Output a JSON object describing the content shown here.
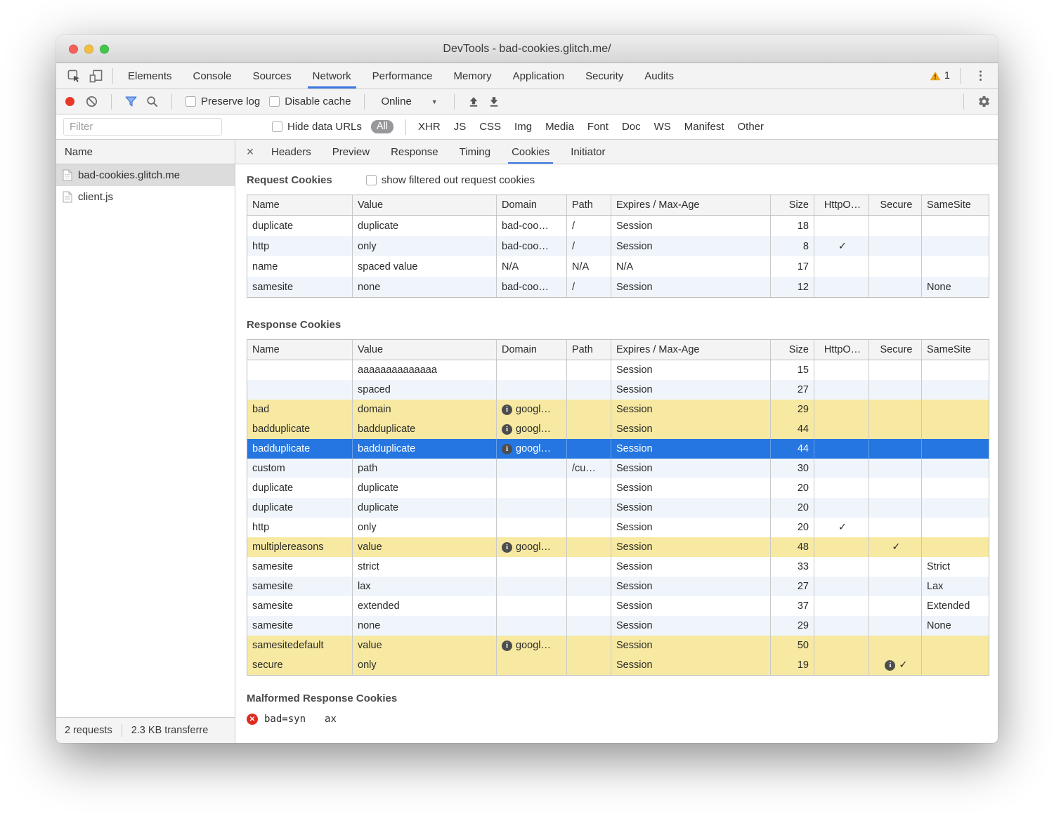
{
  "colors": {
    "accent_blue": "#3b78e0",
    "selection_blue": "#2576e0",
    "row_stripe": "#f0f5fc",
    "row_warning": "#f7e9a1",
    "selected_file_gray": "#dcdcdc",
    "warning_orange": "#efa41b",
    "error_red": "#df2b20",
    "record_red": "#e8382b"
  },
  "window": {
    "title": "DevTools - bad-cookies.glitch.me/"
  },
  "icons": {
    "dropdown_arrow": "▼",
    "menu_dots": "⋮",
    "close_detail": "×"
  },
  "main_tabs": {
    "items": [
      {
        "label": "Elements",
        "active": false
      },
      {
        "label": "Console",
        "active": false
      },
      {
        "label": "Sources",
        "active": false
      },
      {
        "label": "Network",
        "active": true
      },
      {
        "label": "Performance",
        "active": false
      },
      {
        "label": "Memory",
        "active": false
      },
      {
        "label": "Application",
        "active": false
      },
      {
        "label": "Security",
        "active": false
      },
      {
        "label": "Audits",
        "active": false
      }
    ],
    "warning_count": "1"
  },
  "toolbar": {
    "preserve_log": "Preserve log",
    "disable_cache": "Disable cache",
    "throttling": "Online"
  },
  "filter_bar": {
    "placeholder": "Filter",
    "hide_data_urls": "Hide data URLs",
    "all_label": "All",
    "types": [
      "XHR",
      "JS",
      "CSS",
      "Img",
      "Media",
      "Font",
      "Doc",
      "WS",
      "Manifest",
      "Other"
    ]
  },
  "left_panel": {
    "header": "Name",
    "files": [
      {
        "name": "bad-cookies.glitch.me",
        "selected": true
      },
      {
        "name": "client.js",
        "selected": false
      }
    ],
    "status": [
      "2 requests",
      "2.3 KB transferre"
    ]
  },
  "detail_tabs": {
    "items": [
      {
        "label": "Headers",
        "active": false
      },
      {
        "label": "Preview",
        "active": false
      },
      {
        "label": "Response",
        "active": false
      },
      {
        "label": "Timing",
        "active": false
      },
      {
        "label": "Cookies",
        "active": true
      },
      {
        "label": "Initiator",
        "active": false
      }
    ]
  },
  "cookies": {
    "request_title": "Request Cookies",
    "request_checkbox_label": "show filtered out request cookies",
    "response_title": "Response Cookies",
    "malformed_title": "Malformed Response Cookies",
    "malformed_entry": {
      "text": "bad=syn",
      "text_after_tab": "ax"
    },
    "columns": [
      "Name",
      "Value",
      "Domain",
      "Path",
      "Expires / Max-Age",
      "Size",
      "HttpO…",
      "Secure",
      "SameSite"
    ],
    "request_rows": [
      {
        "name": "duplicate",
        "value": "duplicate",
        "domain": "bad-coo…",
        "domain_info": false,
        "path": "/",
        "expires": "Session",
        "size": "18",
        "httponly": "",
        "secure": "",
        "secure_info": false,
        "samesite": "",
        "highlight": ""
      },
      {
        "name": "http",
        "value": "only",
        "domain": "bad-coo…",
        "domain_info": false,
        "path": "/",
        "expires": "Session",
        "size": "8",
        "httponly": "✓",
        "secure": "",
        "secure_info": false,
        "samesite": "",
        "highlight": ""
      },
      {
        "name": "name",
        "value": "spaced value",
        "domain": "N/A",
        "domain_info": false,
        "path": "N/A",
        "expires": "N/A",
        "size": "17",
        "httponly": "",
        "secure": "",
        "secure_info": false,
        "samesite": "",
        "highlight": ""
      },
      {
        "name": "samesite",
        "value": "none",
        "domain": "bad-coo…",
        "domain_info": false,
        "path": "/",
        "expires": "Session",
        "size": "12",
        "httponly": "",
        "secure": "",
        "secure_info": false,
        "samesite": "None",
        "highlight": ""
      }
    ],
    "response_rows": [
      {
        "name": "",
        "value": "aaaaaaaaaaaaaa",
        "domain": "",
        "domain_info": false,
        "path": "",
        "expires": "Session",
        "size": "15",
        "httponly": "",
        "secure": "",
        "secure_info": false,
        "samesite": "",
        "highlight": ""
      },
      {
        "name": "",
        "value": "spaced",
        "domain": "",
        "domain_info": false,
        "path": "",
        "expires": "Session",
        "size": "27",
        "httponly": "",
        "secure": "",
        "secure_info": false,
        "samesite": "",
        "highlight": ""
      },
      {
        "name": "bad",
        "value": "domain",
        "domain": "googl…",
        "domain_info": true,
        "path": "",
        "expires": "Session",
        "size": "29",
        "httponly": "",
        "secure": "",
        "secure_info": false,
        "samesite": "",
        "highlight": "yellow"
      },
      {
        "name": "badduplicate",
        "value": "badduplicate",
        "domain": "googl…",
        "domain_info": true,
        "path": "",
        "expires": "Session",
        "size": "44",
        "httponly": "",
        "secure": "",
        "secure_info": false,
        "samesite": "",
        "highlight": "yellow"
      },
      {
        "name": "badduplicate",
        "value": "badduplicate",
        "domain": "googl…",
        "domain_info": true,
        "path": "",
        "expires": "Session",
        "size": "44",
        "httponly": "",
        "secure": "",
        "secure_info": false,
        "samesite": "",
        "highlight": "selected"
      },
      {
        "name": "custom",
        "value": "path",
        "domain": "",
        "domain_info": false,
        "path": "/cu…",
        "expires": "Session",
        "size": "30",
        "httponly": "",
        "secure": "",
        "secure_info": false,
        "samesite": "",
        "highlight": ""
      },
      {
        "name": "duplicate",
        "value": "duplicate",
        "domain": "",
        "domain_info": false,
        "path": "",
        "expires": "Session",
        "size": "20",
        "httponly": "",
        "secure": "",
        "secure_info": false,
        "samesite": "",
        "highlight": ""
      },
      {
        "name": "duplicate",
        "value": "duplicate",
        "domain": "",
        "domain_info": false,
        "path": "",
        "expires": "Session",
        "size": "20",
        "httponly": "",
        "secure": "",
        "secure_info": false,
        "samesite": "",
        "highlight": ""
      },
      {
        "name": "http",
        "value": "only",
        "domain": "",
        "domain_info": false,
        "path": "",
        "expires": "Session",
        "size": "20",
        "httponly": "✓",
        "secure": "",
        "secure_info": false,
        "samesite": "",
        "highlight": ""
      },
      {
        "name": "multiplereasons",
        "value": "value",
        "domain": "googl…",
        "domain_info": true,
        "path": "",
        "expires": "Session",
        "size": "48",
        "httponly": "",
        "secure": "✓",
        "secure_info": false,
        "samesite": "",
        "highlight": "yellow"
      },
      {
        "name": "samesite",
        "value": "strict",
        "domain": "",
        "domain_info": false,
        "path": "",
        "expires": "Session",
        "size": "33",
        "httponly": "",
        "secure": "",
        "secure_info": false,
        "samesite": "Strict",
        "highlight": ""
      },
      {
        "name": "samesite",
        "value": "lax",
        "domain": "",
        "domain_info": false,
        "path": "",
        "expires": "Session",
        "size": "27",
        "httponly": "",
        "secure": "",
        "secure_info": false,
        "samesite": "Lax",
        "highlight": ""
      },
      {
        "name": "samesite",
        "value": "extended",
        "domain": "",
        "domain_info": false,
        "path": "",
        "expires": "Session",
        "size": "37",
        "httponly": "",
        "secure": "",
        "secure_info": false,
        "samesite": "Extended",
        "highlight": ""
      },
      {
        "name": "samesite",
        "value": "none",
        "domain": "",
        "domain_info": false,
        "path": "",
        "expires": "Session",
        "size": "29",
        "httponly": "",
        "secure": "",
        "secure_info": false,
        "samesite": "None",
        "highlight": ""
      },
      {
        "name": "samesitedefault",
        "value": "value",
        "domain": "googl…",
        "domain_info": true,
        "path": "",
        "expires": "Session",
        "size": "50",
        "httponly": "",
        "secure": "",
        "secure_info": false,
        "samesite": "",
        "highlight": "yellow"
      },
      {
        "name": "secure",
        "value": "only",
        "domain": "",
        "domain_info": false,
        "path": "",
        "expires": "Session",
        "size": "19",
        "httponly": "",
        "secure": "✓",
        "secure_info": true,
        "samesite": "",
        "highlight": "yellow"
      }
    ]
  }
}
